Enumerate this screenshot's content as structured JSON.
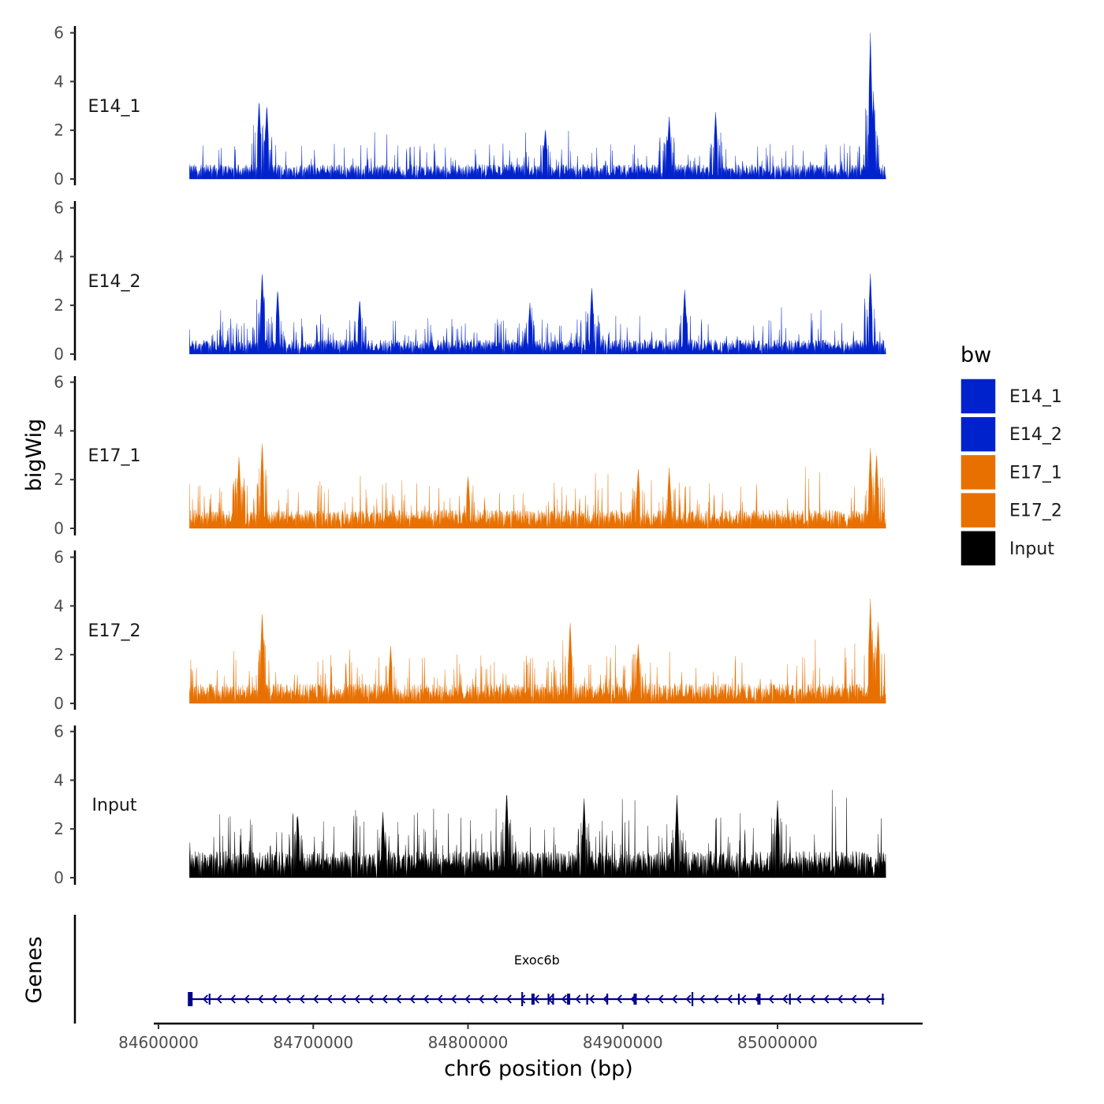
{
  "chart_data": {
    "type": "area",
    "title": "",
    "xlabel": "chr6 position (bp)",
    "ylabel": "bigWig",
    "genes_label": "Genes",
    "xlim": [
      84600000,
      85090000
    ],
    "data_range": [
      84620000,
      85070000
    ],
    "x_ticks": [
      84600000,
      84700000,
      84800000,
      84900000,
      85000000
    ],
    "x_tick_labels": [
      "84600000",
      "84700000",
      "84800000",
      "84900000",
      "85000000"
    ],
    "ylim": [
      0,
      6.5
    ],
    "y_ticks": [
      0,
      2,
      4,
      6
    ],
    "y_tick_labels": [
      "0",
      "2",
      "4",
      "6"
    ],
    "series": [
      {
        "name": "E14_1",
        "color": "#0022cc",
        "baseline": 0.55,
        "max": 6.0,
        "peaks": [
          [
            84665000,
            3.3
          ],
          [
            84670000,
            3.1
          ],
          [
            84850000,
            2.1
          ],
          [
            84930000,
            2.6
          ],
          [
            84960000,
            2.8
          ],
          [
            85060000,
            6.0
          ],
          [
            85062000,
            3.4
          ]
        ]
      },
      {
        "name": "E14_2",
        "color": "#0022cc",
        "baseline": 0.55,
        "max": 3.4,
        "peaks": [
          [
            84667000,
            3.4
          ],
          [
            84677000,
            2.7
          ],
          [
            84730000,
            2.3
          ],
          [
            84840000,
            2.1
          ],
          [
            84880000,
            2.8
          ],
          [
            84940000,
            2.7
          ],
          [
            85060000,
            3.3
          ]
        ]
      },
      {
        "name": "E17_1",
        "color": "#e87000",
        "baseline": 0.7,
        "max": 3.6,
        "peaks": [
          [
            84652000,
            3.0
          ],
          [
            84667000,
            3.6
          ],
          [
            84800000,
            2.2
          ],
          [
            84910000,
            2.5
          ],
          [
            84930000,
            2.5
          ],
          [
            85060000,
            3.3
          ],
          [
            85064000,
            3.1
          ]
        ]
      },
      {
        "name": "E17_2",
        "color": "#e87000",
        "baseline": 0.75,
        "max": 4.3,
        "peaks": [
          [
            84667000,
            3.8
          ],
          [
            84750000,
            2.4
          ],
          [
            84866000,
            3.4
          ],
          [
            84910000,
            2.5
          ],
          [
            85060000,
            4.3
          ],
          [
            85065000,
            3.4
          ]
        ]
      },
      {
        "name": "Input",
        "color": "#000000",
        "baseline": 1.0,
        "max": 3.6,
        "peaks": [
          [
            84690000,
            2.6
          ],
          [
            84745000,
            2.7
          ],
          [
            84825000,
            3.6
          ],
          [
            84875000,
            3.3
          ],
          [
            84935000,
            3.4
          ],
          [
            85000000,
            3.2
          ]
        ]
      }
    ],
    "legend": {
      "title": "bw",
      "position": "right",
      "entries": [
        {
          "label": "E14_1",
          "color": "#0022cc"
        },
        {
          "label": "E14_2",
          "color": "#0022cc"
        },
        {
          "label": "E17_1",
          "color": "#e87000"
        },
        {
          "label": "E17_2",
          "color": "#e87000"
        },
        {
          "label": "Input",
          "color": "#000000"
        }
      ]
    },
    "gene": {
      "name": "Exoc6b",
      "start": 84620000,
      "end": 85069000,
      "strand": "-",
      "color": "#00008b",
      "exons": [
        84620500,
        84633000,
        84835000,
        84842000,
        84852000,
        84855000,
        84865000,
        84877000,
        84890000,
        84908000,
        84945000,
        84975000,
        84988000,
        85008000,
        85068000
      ]
    }
  }
}
